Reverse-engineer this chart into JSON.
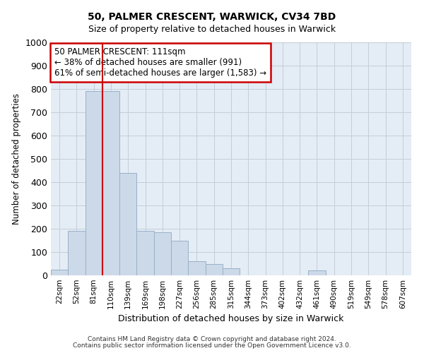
{
  "title1": "50, PALMER CRESCENT, WARWICK, CV34 7BD",
  "title2": "Size of property relative to detached houses in Warwick",
  "xlabel": "Distribution of detached houses by size in Warwick",
  "ylabel": "Number of detached properties",
  "footnote1": "Contains HM Land Registry data © Crown copyright and database right 2024.",
  "footnote2": "Contains public sector information licensed under the Open Government Licence v3.0.",
  "bin_labels": [
    "22sqm",
    "52sqm",
    "81sqm",
    "110sqm",
    "139sqm",
    "169sqm",
    "198sqm",
    "227sqm",
    "256sqm",
    "285sqm",
    "315sqm",
    "344sqm",
    "373sqm",
    "402sqm",
    "432sqm",
    "461sqm",
    "490sqm",
    "519sqm",
    "549sqm",
    "578sqm",
    "607sqm"
  ],
  "bar_heights": [
    25,
    190,
    790,
    790,
    440,
    190,
    185,
    150,
    60,
    50,
    30,
    0,
    0,
    0,
    0,
    20,
    0,
    0,
    0,
    0,
    0
  ],
  "bar_color": "#ccd9e8",
  "bar_edge_color": "#9ab0c8",
  "grid_color": "#c5cdd8",
  "background_color": "#e4ecf5",
  "subject_line_color": "#cc0000",
  "subject_line_bin_index": 3,
  "annotation_text": "50 PALMER CRESCENT: 111sqm\n← 38% of detached houses are smaller (991)\n61% of semi-detached houses are larger (1,583) →",
  "annotation_box_color": "#cc0000",
  "ylim": [
    0,
    1000
  ],
  "yticks": [
    0,
    100,
    200,
    300,
    400,
    500,
    600,
    700,
    800,
    900,
    1000
  ],
  "fig_width": 6.0,
  "fig_height": 5.0
}
